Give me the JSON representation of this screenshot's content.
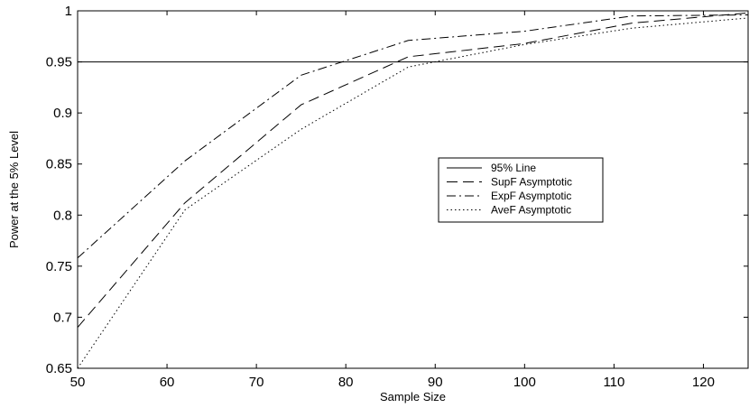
{
  "chart_data": {
    "type": "line",
    "xlabel": "Sample Size",
    "ylabel": "Power at the 5% Level",
    "xlim": [
      50,
      125
    ],
    "ylim": [
      0.65,
      1
    ],
    "xticks": [
      50,
      60,
      70,
      80,
      90,
      100,
      110,
      120
    ],
    "yticks": [
      0.65,
      0.7,
      0.75,
      0.8,
      0.85,
      0.9,
      0.95,
      1
    ],
    "ytick_labels": [
      "0.65",
      "0.7",
      "0.75",
      "0.8",
      "0.85",
      "0.9",
      "0.95",
      "1"
    ],
    "grid": false,
    "legend_position": "center-right",
    "series": [
      {
        "name": "95% Line",
        "style": "solid",
        "x": [
          50,
          125
        ],
        "values": [
          0.95,
          0.95
        ]
      },
      {
        "name": "SupF Asymptotic",
        "style": "dashed",
        "x": [
          50,
          62,
          75,
          87,
          100,
          112,
          125
        ],
        "values": [
          0.69,
          0.812,
          0.908,
          0.955,
          0.968,
          0.988,
          0.998
        ]
      },
      {
        "name": "ExpF Asymptotic",
        "style": "dashdot",
        "x": [
          50,
          62,
          75,
          87,
          100,
          112,
          125
        ],
        "values": [
          0.758,
          0.853,
          0.937,
          0.971,
          0.98,
          0.995,
          0.996
        ]
      },
      {
        "name": "AveF Asymptotic",
        "style": "dotted",
        "x": [
          50,
          62,
          75,
          87,
          100,
          112,
          125
        ],
        "values": [
          0.65,
          0.805,
          0.884,
          0.945,
          0.967,
          0.983,
          0.993
        ]
      }
    ]
  }
}
